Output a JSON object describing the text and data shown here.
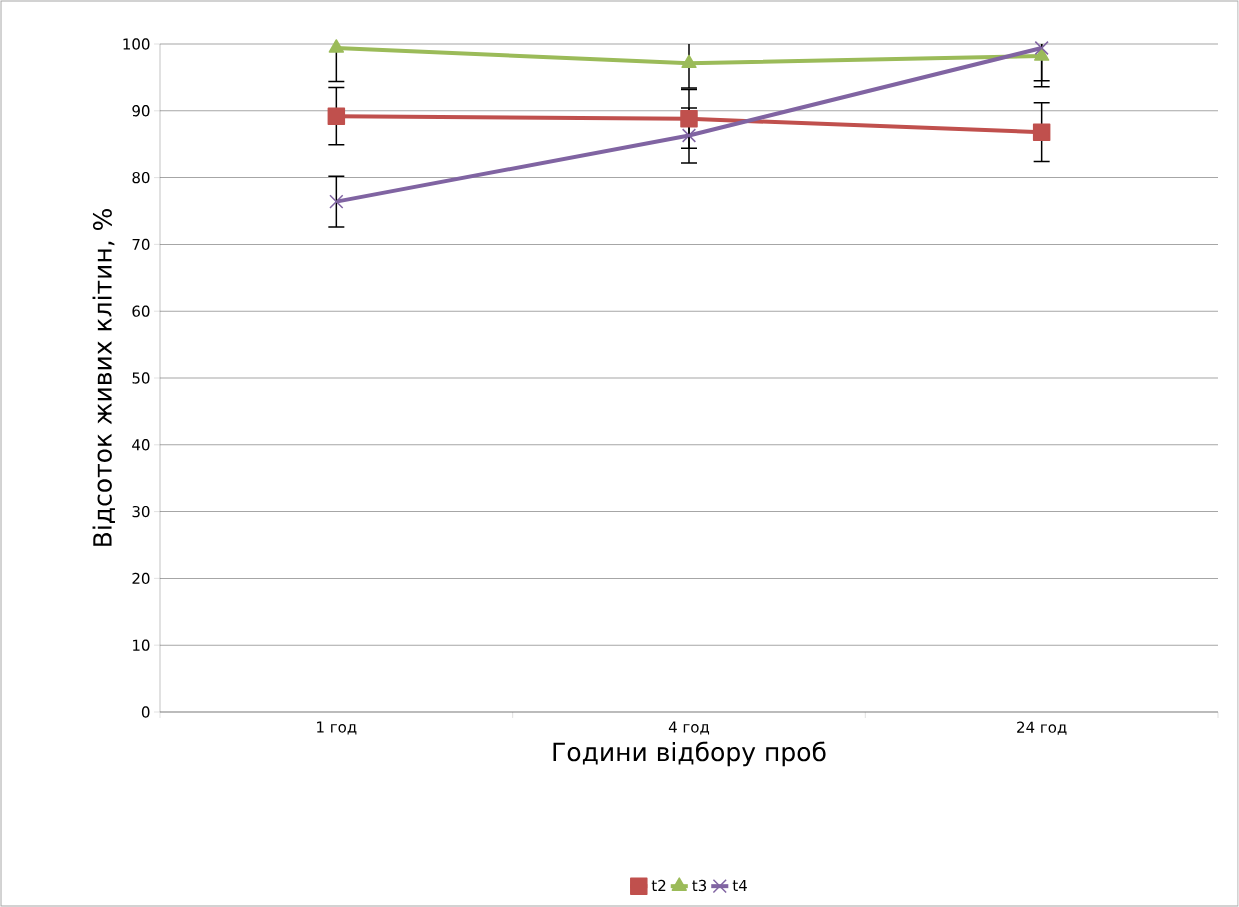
{
  "chart_data": {
    "type": "line",
    "xlabel": "Години відбору проб",
    "ylabel": "Відсоток живих клітин, %",
    "categories": [
      "1 год",
      "4 год",
      "24 год"
    ],
    "series": [
      {
        "name": "t2",
        "color": "#c0504d",
        "marker": "square",
        "values": [
          89.2,
          88.8,
          86.8
        ],
        "errors": [
          4.3,
          4.4,
          4.4
        ]
      },
      {
        "name": "t3",
        "color": "#9bbb59",
        "marker": "triangle",
        "values": [
          99.4,
          97.1,
          98.2
        ],
        "errors": [
          [
            94.4,
            100
          ],
          [
            93.4,
            100
          ],
          [
            94.5,
            100
          ]
        ]
      },
      {
        "name": "t4",
        "color": "#8064a2",
        "marker": "cross",
        "values": [
          76.4,
          86.3,
          99.4
        ],
        "errors": [
          3.8,
          4.1,
          [
            93.6,
            100
          ]
        ]
      }
    ],
    "ylim": [
      0,
      100
    ],
    "yticks": [
      0,
      10,
      20,
      30,
      40,
      50,
      60,
      70,
      80,
      90,
      100
    ],
    "grid": "y",
    "legend": "bottom"
  }
}
